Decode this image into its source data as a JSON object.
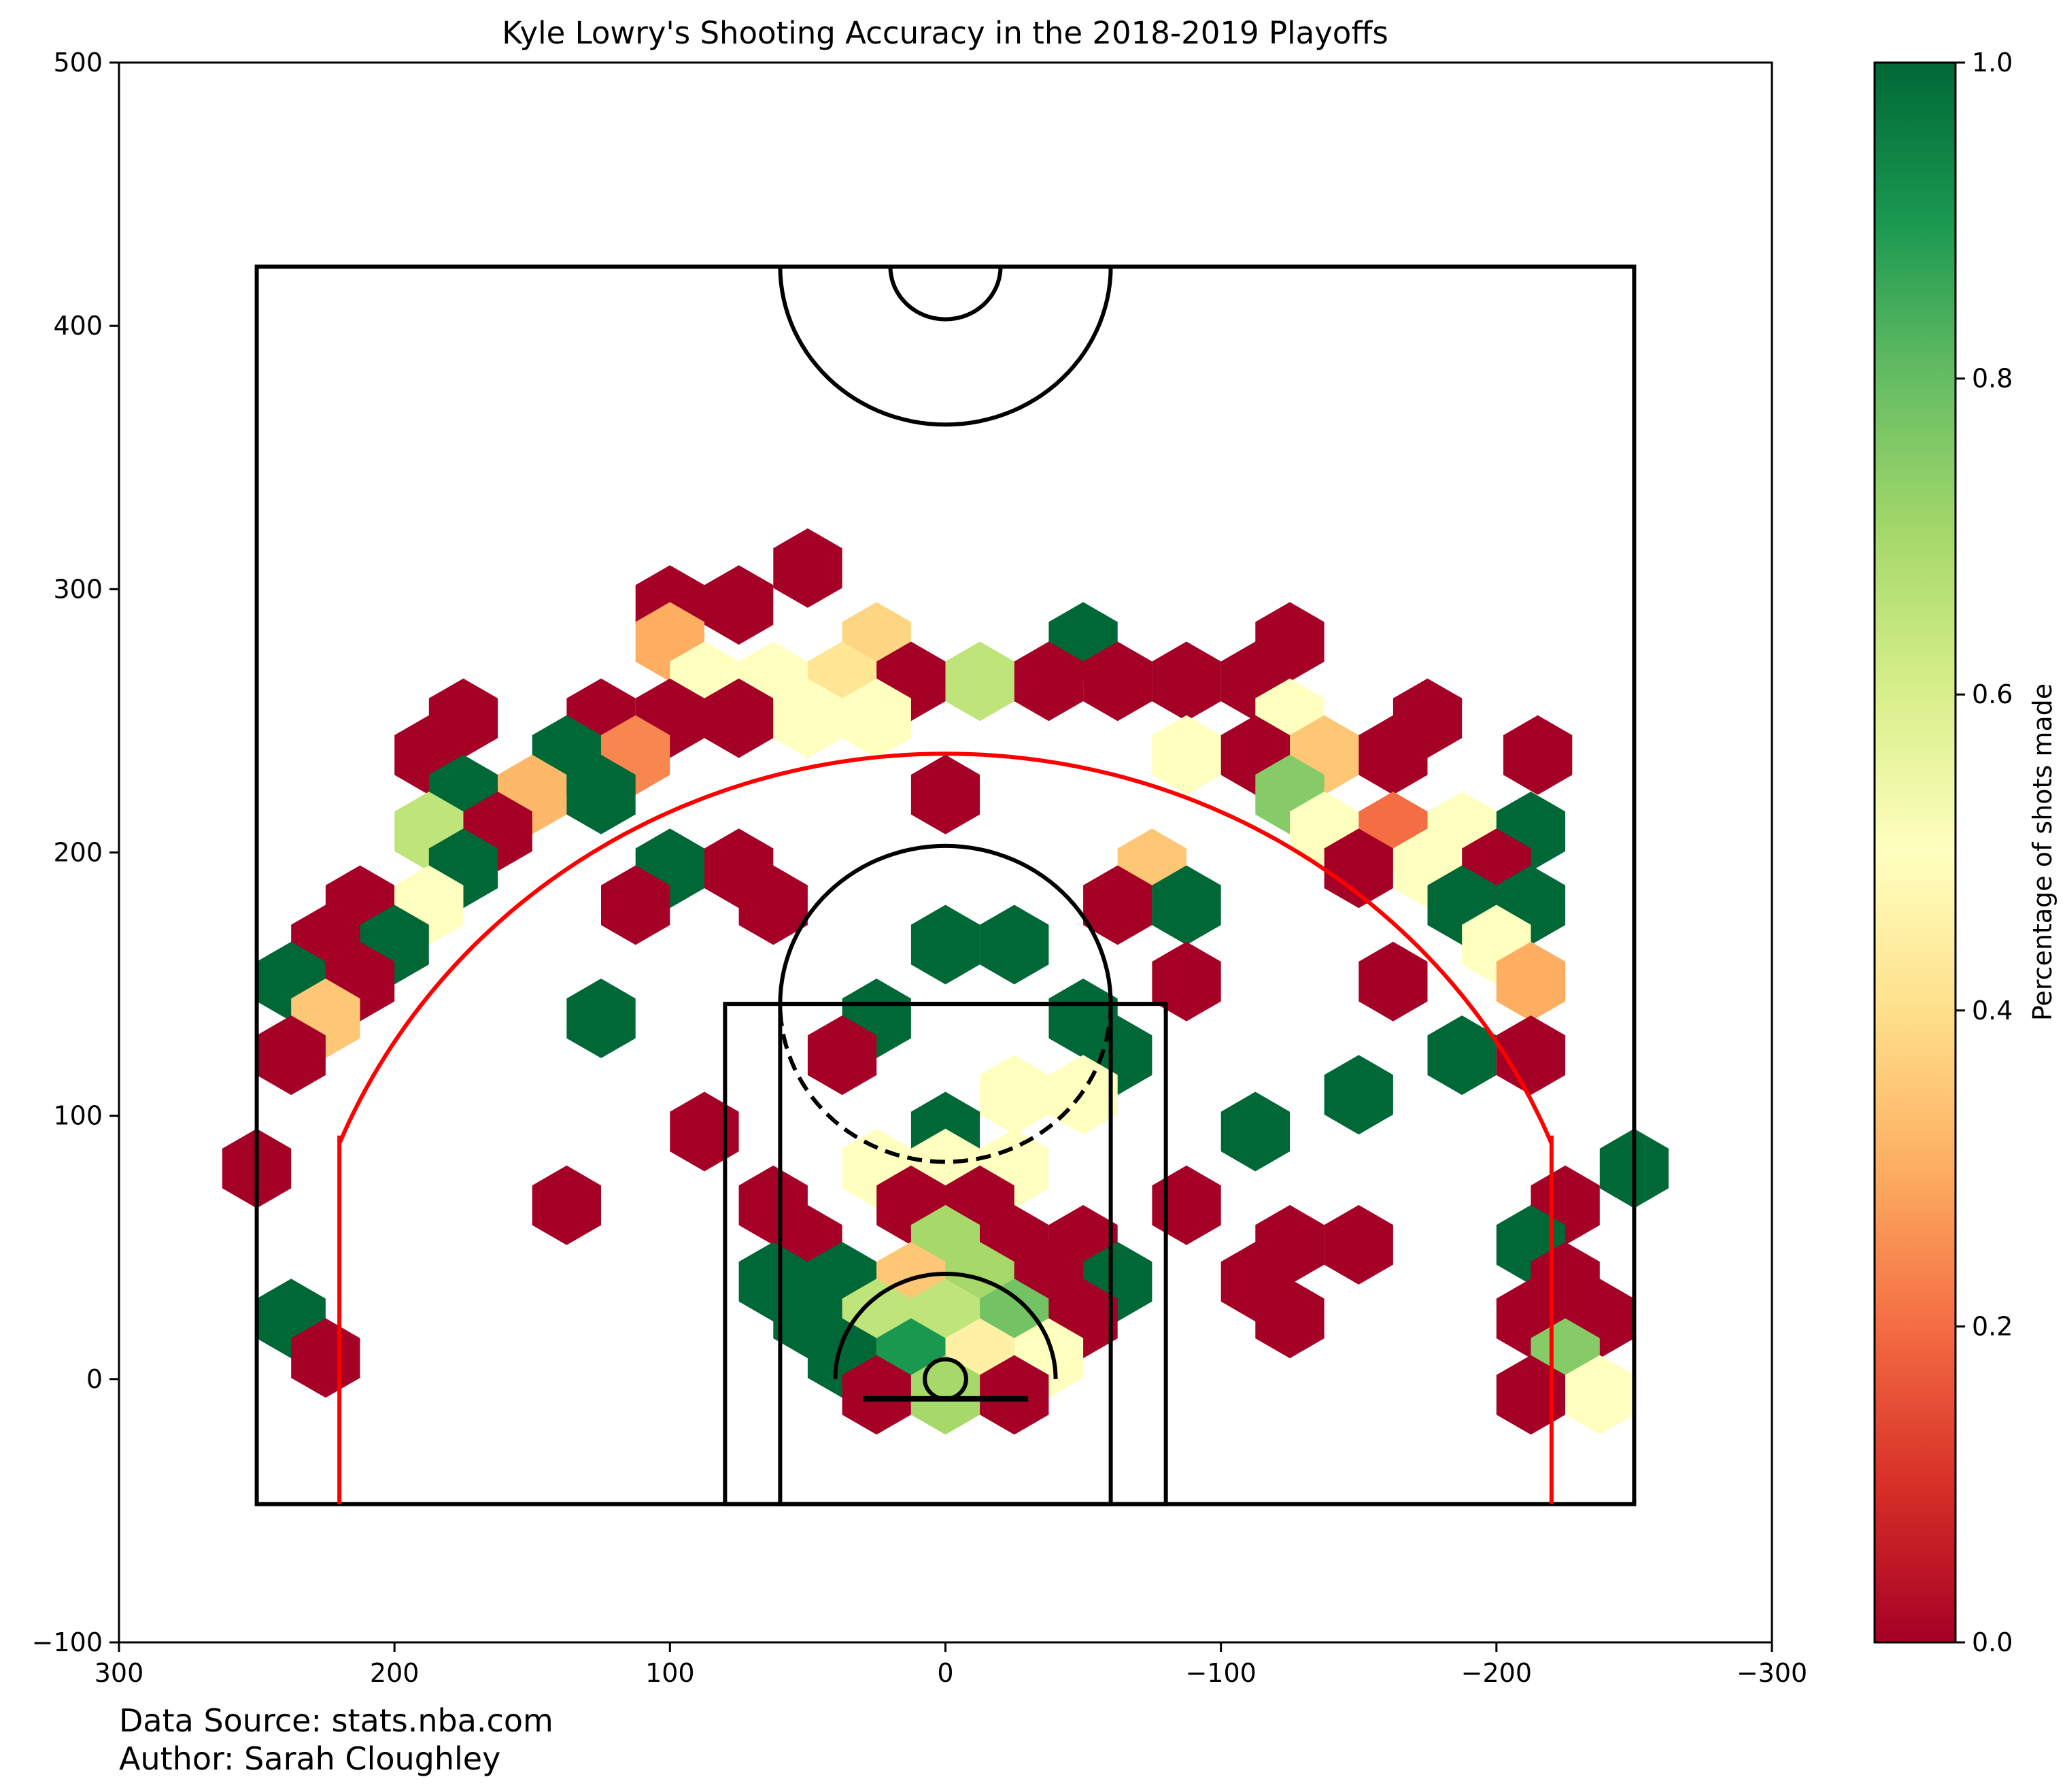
{
  "chart_data": {
    "type": "hexbin",
    "title": "Kyle Lowry's Shooting Accuracy in the 2018-2019 Playoffs",
    "xlabel": "",
    "ylabel": "",
    "xlim": [
      300,
      -300
    ],
    "ylim": [
      -100,
      500
    ],
    "xticks": [
      300,
      200,
      100,
      0,
      -100,
      -200,
      -300
    ],
    "xtick_labels": [
      "300",
      "200",
      "100",
      "0",
      "−100",
      "−200",
      "−300"
    ],
    "yticks": [
      -100,
      0,
      100,
      200,
      300,
      400,
      500
    ],
    "ytick_labels": [
      "−100",
      "0",
      "100",
      "200",
      "300",
      "400",
      "500"
    ],
    "colorbar": {
      "label": "Percentage of shots made",
      "cmap": "RdYlGn",
      "vmin": 0.0,
      "vmax": 1.0,
      "ticks": [
        0.0,
        0.2,
        0.4,
        0.6,
        0.8,
        1.0
      ],
      "tick_labels": [
        "0.0",
        "0.2",
        "0.4",
        "0.6",
        "0.8",
        "1.0"
      ]
    },
    "cells": [
      [
        50,
        308,
        0.0
      ],
      [
        100,
        294,
        0.0
      ],
      [
        75,
        294,
        0.0
      ],
      [
        100,
        280,
        0.3
      ],
      [
        25,
        280,
        0.38
      ],
      [
        -50,
        280,
        1.0
      ],
      [
        -125,
        280,
        0.0
      ],
      [
        87.5,
        265,
        0.5
      ],
      [
        62.5,
        265,
        0.5
      ],
      [
        37.5,
        265,
        0.42
      ],
      [
        12.5,
        265,
        0.0
      ],
      [
        -12.5,
        265,
        0.65
      ],
      [
        -37.5,
        265,
        0.0
      ],
      [
        -62.5,
        265,
        0.0
      ],
      [
        -87.5,
        265,
        0.0
      ],
      [
        -112.5,
        265,
        0.0
      ],
      [
        175,
        251,
        0.0
      ],
      [
        125,
        251,
        0.0
      ],
      [
        100,
        251,
        0.0
      ],
      [
        75,
        251,
        0.0
      ],
      [
        50,
        251,
        0.5
      ],
      [
        25,
        251,
        0.5
      ],
      [
        -125,
        251,
        0.5
      ],
      [
        -175,
        251,
        0.0
      ],
      [
        -215,
        237,
        0.0
      ],
      [
        187.5,
        237,
        0.0
      ],
      [
        137.5,
        237,
        1.0
      ],
      [
        112.5,
        237,
        0.24
      ],
      [
        0,
        222,
        0.0
      ],
      [
        -87.5,
        237,
        0.5
      ],
      [
        -112.5,
        237,
        0.0
      ],
      [
        -137.5,
        237,
        0.35
      ],
      [
        -162.5,
        237,
        0.0
      ],
      [
        175,
        222,
        1.0
      ],
      [
        150,
        222,
        0.32
      ],
      [
        125,
        222,
        1.0
      ],
      [
        -125,
        222,
        0.75
      ],
      [
        187.5,
        208,
        0.65
      ],
      [
        162.5,
        208,
        0.0
      ],
      [
        -137.5,
        208,
        0.5
      ],
      [
        -162.5,
        208,
        0.2
      ],
      [
        -187.5,
        208,
        0.5
      ],
      [
        -212.5,
        208,
        1.0
      ],
      [
        175,
        194,
        1.0
      ],
      [
        100,
        194,
        1.0
      ],
      [
        75,
        194,
        0.0
      ],
      [
        -75,
        194,
        0.35
      ],
      [
        -150,
        194,
        0.0
      ],
      [
        -175,
        194,
        0.5
      ],
      [
        -200,
        194,
        0.0
      ],
      [
        212.5,
        180,
        0.0
      ],
      [
        187.5,
        180,
        0.5
      ],
      [
        112.5,
        180,
        0.0
      ],
      [
        62.5,
        180,
        0.0
      ],
      [
        -62.5,
        180,
        0.0
      ],
      [
        -87.5,
        180,
        1.0
      ],
      [
        -187.5,
        180,
        1.0
      ],
      [
        -212.5,
        180,
        1.0
      ],
      [
        225,
        165,
        0.0
      ],
      [
        200,
        165,
        1.0
      ],
      [
        0,
        165,
        1.0
      ],
      [
        -25,
        165,
        1.0
      ],
      [
        -200,
        165,
        0.5
      ],
      [
        237.5,
        151,
        1.0
      ],
      [
        212.5,
        151,
        0.0
      ],
      [
        -87.5,
        151,
        0.0
      ],
      [
        -162.5,
        151,
        0.0
      ],
      [
        -212.5,
        151,
        0.3
      ],
      [
        225,
        137,
        0.35
      ],
      [
        125,
        137,
        1.0
      ],
      [
        25,
        137,
        1.0
      ],
      [
        -50,
        137,
        1.0
      ],
      [
        237.5,
        123,
        0.0
      ],
      [
        37.5,
        123,
        0.0
      ],
      [
        -62.5,
        123,
        1.0
      ],
      [
        -187.5,
        123,
        1.0
      ],
      [
        -212.5,
        123,
        0.0
      ],
      [
        -25,
        108,
        0.5
      ],
      [
        -50,
        108,
        0.5
      ],
      [
        -150,
        108,
        1.0
      ],
      [
        87.5,
        94,
        0.0
      ],
      [
        0,
        94,
        1.0
      ],
      [
        -112.5,
        94,
        1.0
      ],
      [
        25,
        80,
        0.5
      ],
      [
        0,
        80,
        0.5
      ],
      [
        -25,
        80,
        0.5
      ],
      [
        -250,
        80,
        1.0
      ],
      [
        250,
        80,
        0.0
      ],
      [
        137.5,
        66,
        0.0
      ],
      [
        62.5,
        66,
        0.0
      ],
      [
        12.5,
        66,
        0.0
      ],
      [
        -12.5,
        66,
        0.0
      ],
      [
        -87.5,
        66,
        0.0
      ],
      [
        -225,
        66,
        0.0
      ],
      [
        50,
        51,
        0.0
      ],
      [
        0,
        51,
        0.7
      ],
      [
        -25,
        51,
        0.0
      ],
      [
        -50,
        51,
        0.0
      ],
      [
        -125,
        51,
        0.0
      ],
      [
        -150,
        51,
        0.0
      ],
      [
        -212.5,
        51,
        1.0
      ],
      [
        62.5,
        37,
        1.0
      ],
      [
        37.5,
        37,
        1.0
      ],
      [
        12.5,
        37,
        0.35
      ],
      [
        -12.5,
        37,
        0.7
      ],
      [
        -37.5,
        37,
        0.0
      ],
      [
        -62.5,
        37,
        1.0
      ],
      [
        -112.5,
        37,
        0.0
      ],
      [
        -225,
        37,
        0.0
      ],
      [
        237.5,
        23,
        1.0
      ],
      [
        50,
        23,
        1.0
      ],
      [
        25,
        23,
        0.65
      ],
      [
        0,
        23,
        0.65
      ],
      [
        -25,
        23,
        0.78
      ],
      [
        -50,
        23,
        0.0
      ],
      [
        -125,
        23,
        0.0
      ],
      [
        -212.5,
        23,
        0.0
      ],
      [
        -237.5,
        23,
        0.0
      ],
      [
        225,
        8,
        0.0
      ],
      [
        37.5,
        8,
        1.0
      ],
      [
        12.5,
        8,
        0.9
      ],
      [
        -12.5,
        8,
        0.45
      ],
      [
        -37.5,
        8,
        0.5
      ],
      [
        -225,
        8,
        0.75
      ],
      [
        25,
        -6,
        0.0
      ],
      [
        0,
        -6,
        0.7
      ],
      [
        -25,
        -6,
        0.0
      ],
      [
        -212.5,
        -6,
        0.0
      ],
      [
        -237.5,
        -6,
        0.5
      ]
    ]
  },
  "footer": {
    "source": "Data Source: stats.nba.com",
    "author": "Author: Sarah Cloughley"
  }
}
